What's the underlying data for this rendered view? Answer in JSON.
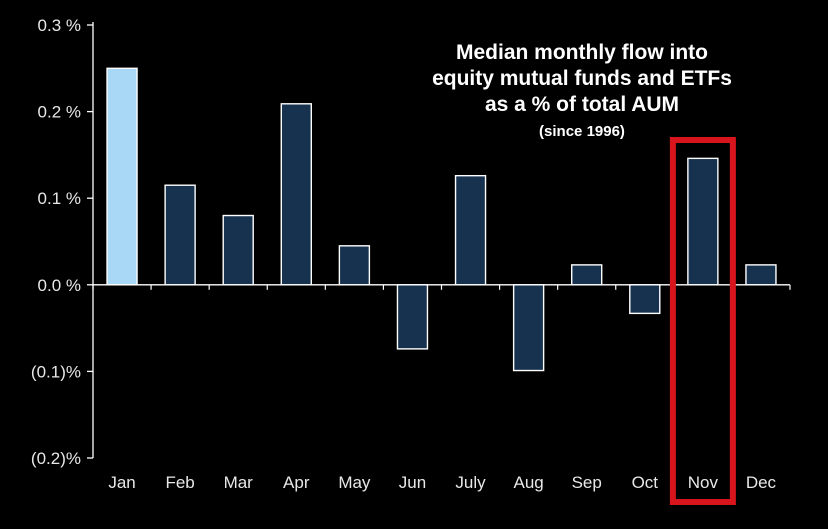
{
  "chart_data": {
    "type": "bar",
    "title": "Median monthly flow into equity mutual funds and ETFs as a % of total AUM",
    "title_lines": [
      "Median monthly flow into",
      "equity mutual funds and ETFs",
      "as a % of total AUM"
    ],
    "subtitle": "(since 1996)",
    "xlabel": "",
    "ylabel": "",
    "ylim": [
      -0.2,
      0.3
    ],
    "y_ticks": [
      {
        "value": 0.3,
        "label": "0.3 %"
      },
      {
        "value": 0.2,
        "label": "0.2 %"
      },
      {
        "value": 0.1,
        "label": "0.1 %"
      },
      {
        "value": 0.0,
        "label": "0.0 %"
      },
      {
        "value": -0.1,
        "label": "(0.1)%"
      },
      {
        "value": -0.2,
        "label": "(0.2)%"
      }
    ],
    "categories": [
      "Jan",
      "Feb",
      "Mar",
      "Apr",
      "May",
      "Jun",
      "July",
      "Aug",
      "Sep",
      "Oct",
      "Nov",
      "Dec"
    ],
    "values": [
      0.25,
      0.115,
      0.08,
      0.209,
      0.045,
      -0.074,
      0.126,
      -0.099,
      0.023,
      -0.033,
      0.146,
      0.023
    ],
    "highlighted_category": "Jan",
    "boxed_category": "Nov",
    "colors": {
      "background": "#000000",
      "bar": "#17324f",
      "bar_highlight": "#a9d8f7",
      "bar_edge": "#ffffff",
      "axis": "#ffffff",
      "box": "#d8151d",
      "text": "#ffffff"
    }
  }
}
